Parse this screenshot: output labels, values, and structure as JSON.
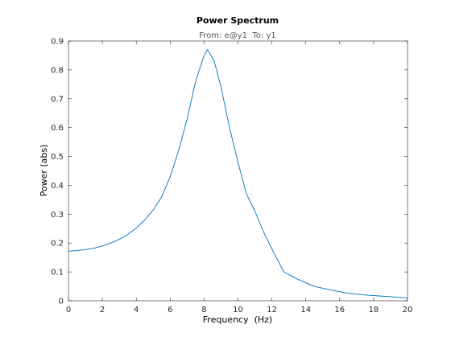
{
  "chart_data": {
    "type": "line",
    "title": "Power Spectrum",
    "subtitle": "From: e@y1  To: y1",
    "xlabel": "Frequency  (Hz)",
    "ylabel": "Power (abs)",
    "xlim": [
      0,
      20
    ],
    "ylim": [
      0,
      0.9
    ],
    "xticks": [
      0,
      2,
      4,
      6,
      8,
      10,
      12,
      14,
      16,
      18,
      20
    ],
    "yticks": [
      0,
      0.1,
      0.2,
      0.3,
      0.4,
      0.5,
      0.6,
      0.7,
      0.8,
      0.9
    ],
    "grid": false,
    "series": [
      {
        "color": "#0072BD",
        "x": [
          0,
          0.5,
          1,
          1.5,
          2,
          2.5,
          3,
          3.5,
          4,
          4.5,
          5,
          5.5,
          6,
          6.5,
          7,
          7.5,
          8,
          8.2,
          8.6,
          9,
          9.5,
          10,
          10.5,
          11,
          11.5,
          12,
          12.7,
          13.5,
          14.5,
          15.5,
          16.5,
          17.5,
          18.5,
          19.5,
          20
        ],
        "y": [
          0.172,
          0.174,
          0.177,
          0.182,
          0.19,
          0.2,
          0.213,
          0.23,
          0.252,
          0.28,
          0.315,
          0.36,
          0.43,
          0.52,
          0.63,
          0.76,
          0.85,
          0.87,
          0.83,
          0.74,
          0.6,
          0.48,
          0.37,
          0.31,
          0.24,
          0.18,
          0.1,
          0.075,
          0.05,
          0.037,
          0.026,
          0.02,
          0.016,
          0.012,
          0.01
        ]
      }
    ]
  }
}
